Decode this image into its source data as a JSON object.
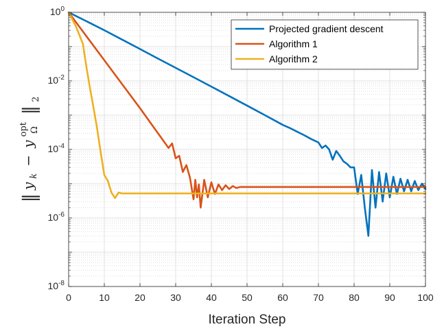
{
  "chart_data": {
    "type": "line",
    "xlabel": "Iteration Step",
    "ylabel": "‖y_k − y_Ω^opt‖_2",
    "ylabel_parts": {
      "bar": "‖",
      "y": "y",
      "k": "k",
      "minus": "−",
      "y2": "y",
      "opt": "opt",
      "omega": "Ω",
      "two": "2"
    },
    "xlim": [
      0,
      100
    ],
    "ylim_exponents": [
      -8,
      0
    ],
    "yscale": "log",
    "grid": true,
    "minor_grid": true,
    "legend_position": "top-right",
    "x_ticks": [
      "0",
      "10",
      "20",
      "30",
      "40",
      "50",
      "60",
      "70",
      "80",
      "90",
      "100"
    ],
    "y_ticks": [
      {
        "base": "10",
        "exp": "0"
      },
      {
        "base": "10",
        "exp": "-2"
      },
      {
        "base": "10",
        "exp": "-4"
      },
      {
        "base": "10",
        "exp": "-6"
      },
      {
        "base": "10",
        "exp": "-8"
      }
    ],
    "series": [
      {
        "name": "Projected gradient descent",
        "color": "#0072BD",
        "x": [
          0,
          5,
          10,
          15,
          20,
          25,
          30,
          35,
          40,
          45,
          50,
          55,
          60,
          62,
          64,
          66,
          68,
          70,
          71,
          72,
          73,
          74,
          75,
          76,
          77,
          78,
          79,
          80,
          81,
          82,
          83,
          84,
          85,
          86,
          87,
          88,
          89,
          90,
          91,
          92,
          93,
          94,
          95,
          96,
          97,
          98,
          99,
          100
        ],
        "y": [
          1,
          0.55,
          0.3,
          0.16,
          0.085,
          0.045,
          0.024,
          0.0128,
          0.0068,
          0.0036,
          0.0019,
          0.001,
          0.00052,
          0.00042,
          0.00033,
          0.00026,
          0.0002,
          0.00016,
          0.00011,
          0.00013,
          0.0001,
          5e-05,
          9e-05,
          6.5e-05,
          4.5e-05,
          3.8e-05,
          3e-05,
          3e-05,
          5e-06,
          1.8e-05,
          2e-06,
          3e-07,
          2.5e-05,
          2e-06,
          2.2e-05,
          3e-06,
          2e-05,
          4e-06,
          1.6e-05,
          5e-06,
          1.4e-05,
          6e-06,
          1.3e-05,
          6e-06,
          1.2e-05,
          6.5e-06,
          1e-05,
          7e-06
        ]
      },
      {
        "name": "Algorithm 1",
        "color": "#D95319",
        "x": [
          0,
          5,
          10,
          15,
          20,
          25,
          28,
          29,
          30,
          31,
          32,
          33,
          34,
          35,
          35.5,
          36,
          36.5,
          37,
          38,
          39,
          40,
          41,
          42,
          43,
          44,
          45,
          46,
          47,
          48,
          50,
          60,
          70,
          80,
          85,
          90,
          95,
          100
        ],
        "y": [
          1,
          0.2,
          0.04,
          0.008,
          0.0016,
          0.0003,
          0.00011,
          0.00015,
          5.5e-05,
          6.5e-05,
          2.2e-05,
          3.5e-05,
          1.5e-05,
          3.5e-06,
          1.3e-05,
          4e-06,
          9.5e-06,
          2e-06,
          1.3e-05,
          4e-06,
          1.1e-05,
          5e-06,
          9.5e-06,
          6.5e-06,
          9e-06,
          7e-06,
          8.5e-06,
          7.5e-06,
          8e-06,
          8e-06,
          8e-06,
          8e-06,
          8e-06,
          8e-06,
          8e-06,
          8e-06,
          8e-06
        ]
      },
      {
        "name": "Algorithm 2",
        "color": "#EDB120",
        "x": [
          0,
          2,
          3,
          4,
          5,
          6,
          7,
          8,
          9,
          10,
          11,
          12,
          13,
          14,
          15,
          20,
          30,
          40,
          50,
          60,
          70,
          80,
          90,
          100
        ],
        "y": [
          1,
          0.4,
          0.22,
          0.12,
          0.025,
          0.006,
          0.0016,
          0.0004,
          8e-05,
          1.8e-05,
          1.2e-05,
          5.5e-06,
          3.8e-06,
          5.5e-06,
          5.2e-06,
          5.2e-06,
          5.2e-06,
          5.2e-06,
          5.2e-06,
          5.2e-06,
          5.2e-06,
          5.2e-06,
          5.2e-06,
          5.2e-06
        ]
      }
    ]
  }
}
